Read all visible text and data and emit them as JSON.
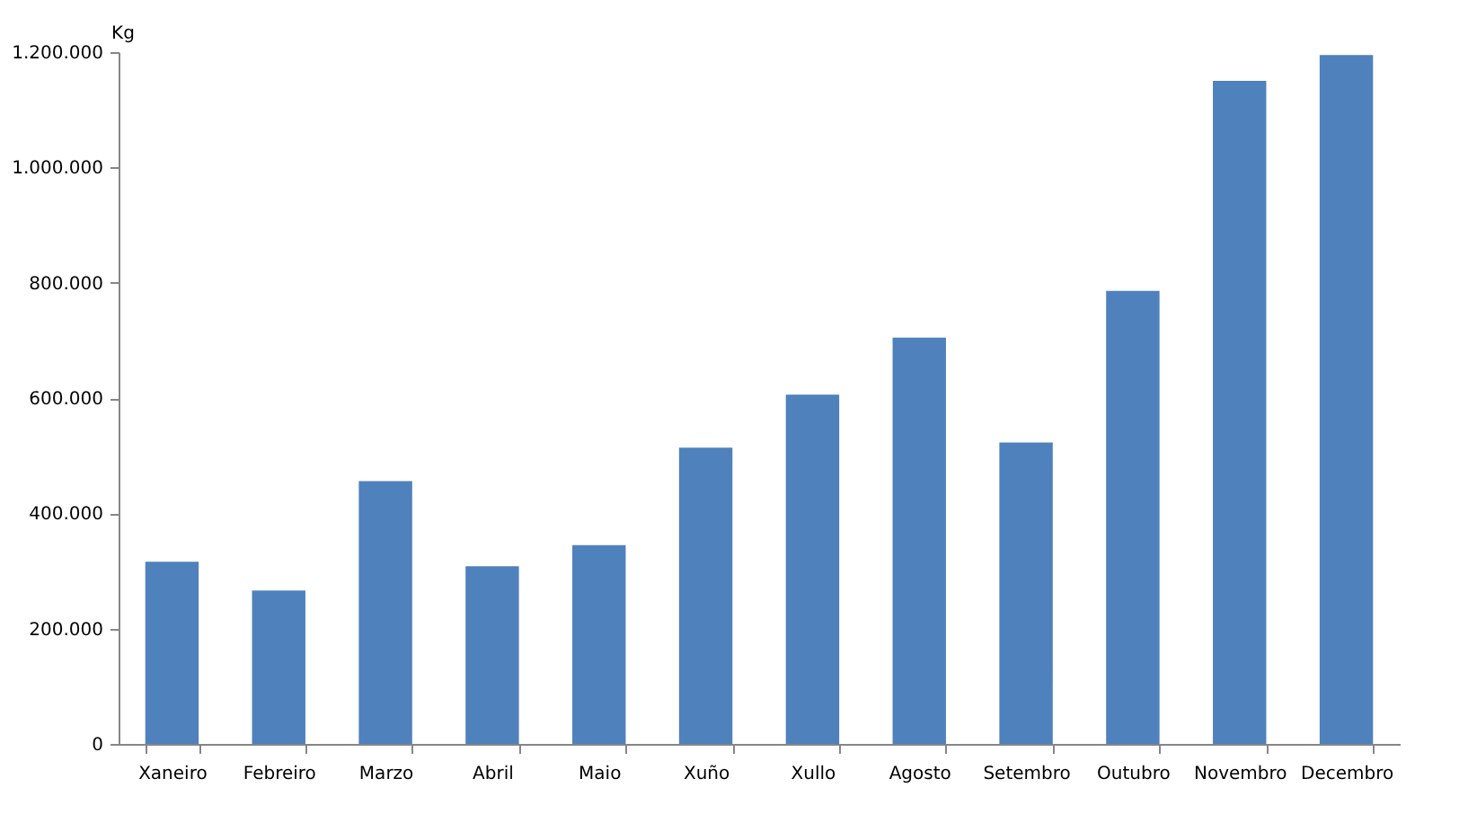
{
  "chart_data": {
    "type": "bar",
    "ylabel": "Kg",
    "categories": [
      "Xaneiro",
      "Febreiro",
      "Marzo",
      "Abril",
      "Maio",
      "Xuño",
      "Xullo",
      "Agosto",
      "Setembro",
      "Outubro",
      "Novembro",
      "Decembro"
    ],
    "values": [
      316000,
      266000,
      456000,
      308000,
      345000,
      514000,
      606000,
      705000,
      523000,
      786000,
      1150000,
      1195000
    ],
    "color": "#4f81bd",
    "ylim": [
      0,
      1200000
    ],
    "yticks": [
      0,
      {
        "value": 200000,
        "label": "200.000"
      },
      {
        "value": 400000,
        "label": "400.000"
      },
      {
        "value": 600000,
        "label": "600.000"
      },
      {
        "value": 800000,
        "label": "800.000"
      },
      {
        "value": 1000000,
        "label": "1.000.000"
      },
      {
        "value": 1200000,
        "label": "1.200.000"
      }
    ]
  }
}
